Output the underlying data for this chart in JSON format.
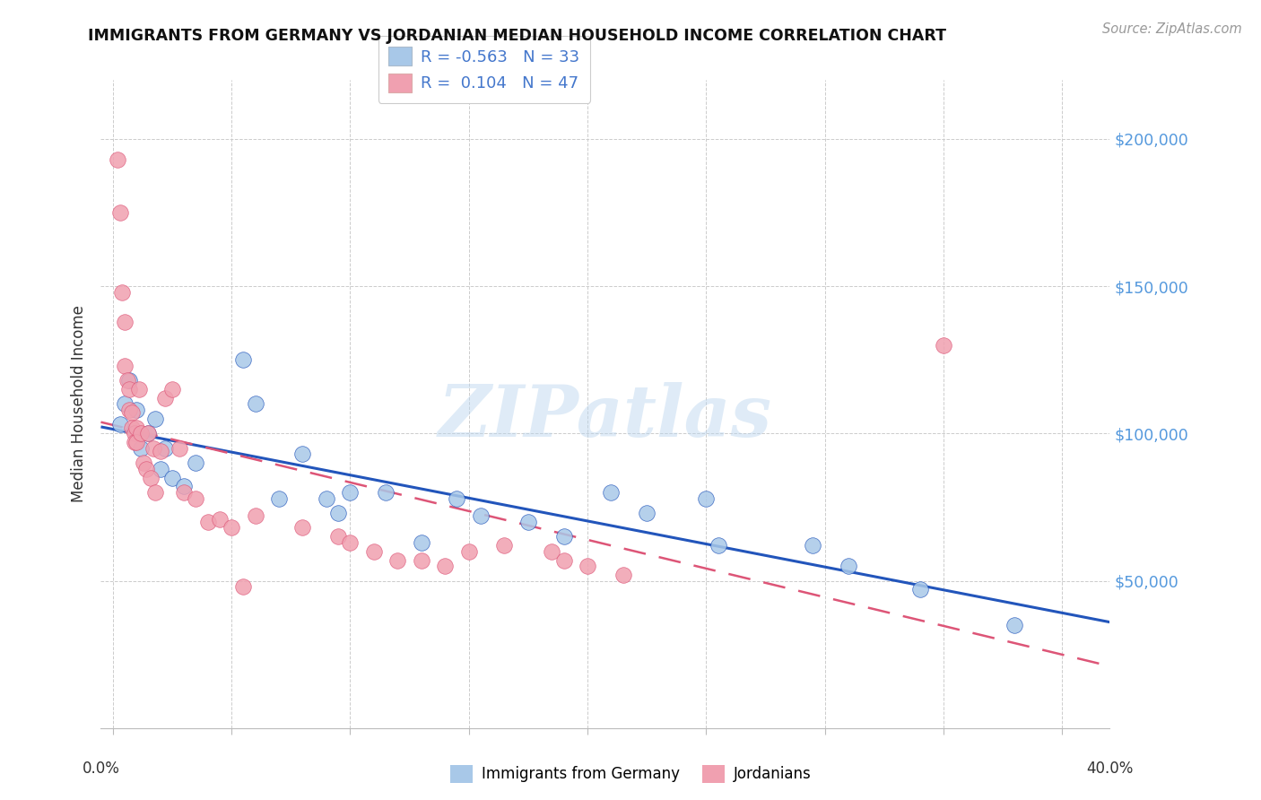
{
  "title": "IMMIGRANTS FROM GERMANY VS JORDANIAN MEDIAN HOUSEHOLD INCOME CORRELATION CHART",
  "source": "Source: ZipAtlas.com",
  "ylabel": "Median Household Income",
  "yaxis_labels": [
    "$200,000",
    "$150,000",
    "$100,000",
    "$50,000"
  ],
  "yaxis_values": [
    200000,
    150000,
    100000,
    50000
  ],
  "legend_label_1": "Immigrants from Germany",
  "legend_label_2": "Jordanians",
  "R1": "-0.563",
  "N1": "33",
  "R2": "0.104",
  "N2": "47",
  "color_blue": "#A8C8E8",
  "color_blue_line": "#2255BB",
  "color_pink": "#F0A0B0",
  "color_pink_line": "#DD5577",
  "xlim": [
    -0.005,
    0.42
  ],
  "ylim": [
    0,
    220000
  ],
  "blue_x": [
    0.003,
    0.005,
    0.007,
    0.01,
    0.012,
    0.015,
    0.018,
    0.02,
    0.022,
    0.025,
    0.03,
    0.035,
    0.055,
    0.06,
    0.07,
    0.08,
    0.09,
    0.095,
    0.1,
    0.115,
    0.13,
    0.145,
    0.155,
    0.175,
    0.19,
    0.21,
    0.225,
    0.255,
    0.295,
    0.34,
    0.38,
    0.25,
    0.31
  ],
  "blue_y": [
    103000,
    110000,
    118000,
    108000,
    95000,
    100000,
    105000,
    88000,
    95000,
    85000,
    82000,
    90000,
    125000,
    110000,
    78000,
    93000,
    78000,
    73000,
    80000,
    80000,
    63000,
    78000,
    72000,
    70000,
    65000,
    80000,
    73000,
    62000,
    62000,
    47000,
    35000,
    78000,
    55000
  ],
  "pink_x": [
    0.002,
    0.003,
    0.004,
    0.005,
    0.005,
    0.006,
    0.007,
    0.007,
    0.008,
    0.008,
    0.009,
    0.009,
    0.01,
    0.01,
    0.011,
    0.012,
    0.013,
    0.014,
    0.015,
    0.016,
    0.017,
    0.018,
    0.02,
    0.022,
    0.025,
    0.028,
    0.03,
    0.035,
    0.04,
    0.045,
    0.05,
    0.055,
    0.06,
    0.08,
    0.095,
    0.1,
    0.11,
    0.12,
    0.13,
    0.14,
    0.15,
    0.165,
    0.185,
    0.19,
    0.2,
    0.215,
    0.35
  ],
  "pink_y": [
    193000,
    175000,
    148000,
    138000,
    123000,
    118000,
    115000,
    108000,
    107000,
    102000,
    100000,
    97000,
    102000,
    97000,
    115000,
    100000,
    90000,
    88000,
    100000,
    85000,
    95000,
    80000,
    94000,
    112000,
    115000,
    95000,
    80000,
    78000,
    70000,
    71000,
    68000,
    48000,
    72000,
    68000,
    65000,
    63000,
    60000,
    57000,
    57000,
    55000,
    60000,
    62000,
    60000,
    57000,
    55000,
    52000,
    130000
  ]
}
